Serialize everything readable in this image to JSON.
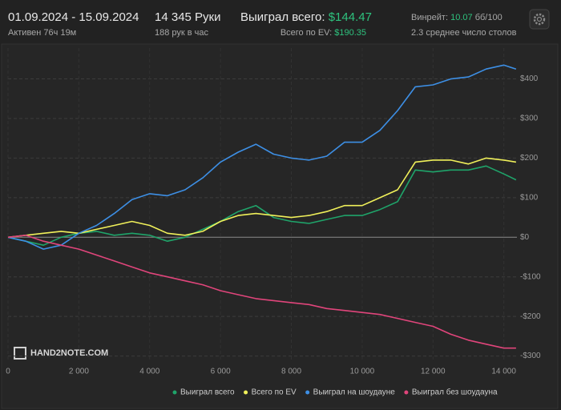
{
  "header": {
    "date_range": "01.09.2024 - 15.09.2024",
    "active": "Активен 76ч 19м",
    "hands": "14 345 Руки",
    "hands_per_hour": "188 рук в час",
    "won_label": "Выиграл всего:",
    "won_value": "$144.47",
    "ev_label": "Всего по EV:",
    "ev_value": "$190.35",
    "winrate_label": "Винрейт:",
    "winrate_value": "10.07",
    "winrate_unit": "бб/100",
    "tables": "2.3 среднее число столов"
  },
  "watermark": "HAND2NOTE.COM",
  "chart_data": {
    "type": "line",
    "grid": true,
    "xlim": [
      0,
      14370
    ],
    "ylim": [
      -315,
      478
    ],
    "xticks": [
      0,
      {
        "value": 2000,
        "label": "2 000"
      },
      {
        "value": 4000,
        "label": "4 000"
      },
      {
        "value": 6000,
        "label": "6 000"
      },
      {
        "value": 8000,
        "label": "8 000"
      },
      {
        "value": 10000,
        "label": "10 000"
      },
      {
        "value": 12000,
        "label": "12 000"
      },
      {
        "value": 14000,
        "label": "14 000"
      }
    ],
    "yticks": [
      {
        "value": -300,
        "label": "-$300"
      },
      {
        "value": -200,
        "label": "-$200"
      },
      {
        "value": -100,
        "label": "-$100"
      },
      {
        "value": 0,
        "label": "$0"
      },
      {
        "value": 100,
        "label": "$100"
      },
      {
        "value": 200,
        "label": "$200"
      },
      {
        "value": 300,
        "label": "$300"
      },
      {
        "value": 400,
        "label": "$400"
      }
    ],
    "x": [
      0,
      500,
      1000,
      1500,
      2000,
      2500,
      3000,
      3500,
      4000,
      4500,
      5000,
      5500,
      6000,
      6500,
      7000,
      7500,
      8000,
      8500,
      9000,
      9500,
      10000,
      10500,
      11000,
      11500,
      12000,
      12500,
      13000,
      13500,
      14000,
      14345
    ],
    "series": [
      {
        "name": "Выиграл всего",
        "color": "#1fa46a",
        "values": [
          0,
          -10,
          -20,
          0,
          10,
          15,
          5,
          10,
          5,
          -10,
          0,
          20,
          40,
          65,
          80,
          50,
          40,
          35,
          45,
          55,
          55,
          70,
          90,
          170,
          165,
          170,
          170,
          180,
          160,
          145
        ]
      },
      {
        "name": "Всего по EV",
        "color": "#f0f05a",
        "values": [
          0,
          5,
          10,
          15,
          10,
          20,
          30,
          40,
          30,
          10,
          5,
          15,
          40,
          55,
          60,
          55,
          50,
          55,
          65,
          80,
          80,
          100,
          120,
          190,
          195,
          195,
          185,
          200,
          195,
          190
        ]
      },
      {
        "name": "Выиграл на шоудауне",
        "color": "#3d8fe5",
        "values": [
          0,
          -10,
          -30,
          -20,
          10,
          30,
          60,
          95,
          110,
          105,
          120,
          150,
          190,
          215,
          235,
          210,
          200,
          195,
          205,
          240,
          240,
          270,
          320,
          380,
          385,
          400,
          405,
          425,
          435,
          425
        ]
      },
      {
        "name": "Выиграл без шоудауна",
        "color": "#e0457b",
        "values": [
          0,
          5,
          -10,
          -20,
          -30,
          -45,
          -60,
          -75,
          -90,
          -100,
          -110,
          -120,
          -135,
          -145,
          -155,
          -160,
          -165,
          -170,
          -180,
          -185,
          -190,
          -195,
          -205,
          -215,
          -225,
          -245,
          -260,
          -270,
          -280,
          -280
        ]
      }
    ]
  }
}
